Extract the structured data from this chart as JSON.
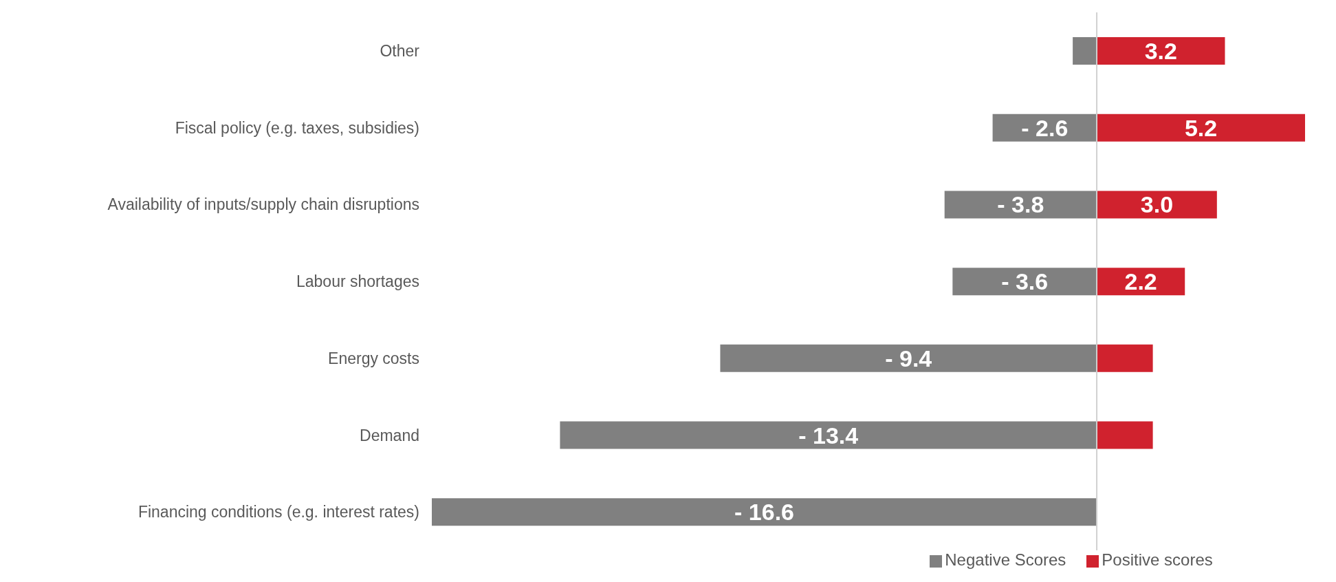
{
  "chart_data": {
    "type": "bar",
    "orientation": "horizontal",
    "stacked": true,
    "legend": "bottom",
    "categories": [
      "Other",
      "Fiscal policy (e.g. taxes, subsidies)",
      "Availability of inputs/supply chain disruptions",
      "Labour shortages",
      "Energy costs",
      "Demand",
      "Financing conditions (e.g. interest rates)"
    ],
    "series": [
      {
        "name": "Positive scores",
        "color": "#d0222e",
        "values": [
          3.2,
          5.2,
          3.0,
          2.2,
          1.4,
          1.4,
          null
        ],
        "value_labels": [
          "3.2",
          "5.2",
          "3.0",
          "2.2",
          null,
          null,
          null
        ]
      },
      {
        "name": "Negative Scores",
        "color": "#808080",
        "values": [
          -0.6,
          -2.6,
          -3.8,
          -3.6,
          -9.4,
          -13.4,
          -16.6
        ],
        "value_labels": [
          null,
          "- 2.6",
          "- 3.8",
          "- 3.6",
          "- 9.4",
          "- 13.4",
          "- 16.6"
        ]
      }
    ]
  }
}
